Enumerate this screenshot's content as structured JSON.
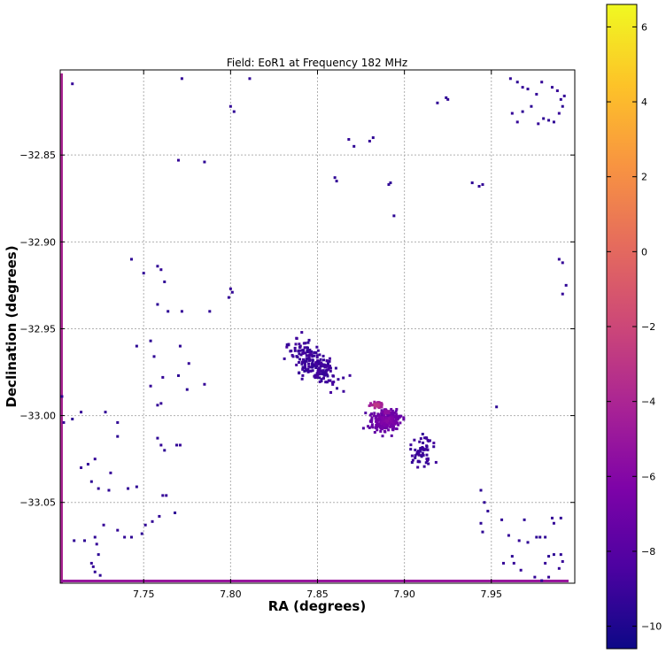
{
  "chart_data": {
    "type": "heatmap",
    "title": "Field: EoR1 at Frequency 182 MHz",
    "xlabel": "RA (degrees)",
    "ylabel": "Declination (degrees)",
    "xlim": [
      7.702,
      7.998
    ],
    "ylim": [
      -33.0965,
      -32.801
    ],
    "xticks": [
      7.75,
      7.8,
      7.85,
      7.9,
      7.95
    ],
    "xtick_labels": [
      "7.75",
      "7.80",
      "7.85",
      "7.90",
      "7.95"
    ],
    "yticks": [
      -32.85,
      -32.9,
      -32.95,
      -33.0,
      -33.05
    ],
    "ytick_labels": [
      "−32.85",
      "−32.90",
      "−32.95",
      "−33.00",
      "−33.05"
    ],
    "grid": true,
    "colormap": "plasma",
    "colorbar": {
      "vmin": -10.6,
      "vmax": 6.6,
      "ticks": [
        6,
        4,
        2,
        0,
        -2,
        -4,
        -6,
        -8,
        -10
      ],
      "tick_labels": [
        "6",
        "4",
        "2",
        "0",
        "−2",
        "−4",
        "−6",
        "−8",
        "−10"
      ]
    },
    "hotspots": [
      {
        "ra": 7.884,
        "dec": -32.994,
        "value": -3.0
      },
      {
        "ra": 7.89,
        "dec": -32.998,
        "value": -5.5
      }
    ],
    "clusters": [
      {
        "name": "main",
        "ra": 7.89,
        "dec": -33.003,
        "sra": 0.01,
        "sdec": 0.007,
        "n": 230
      },
      {
        "name": "arm",
        "ra": 7.848,
        "dec": -32.97,
        "sra": 0.017,
        "sdec": 0.011,
        "n": 210
      },
      {
        "name": "tail",
        "ra": 7.91,
        "dec": -33.02,
        "sra": 0.009,
        "sdec": 0.01,
        "n": 60
      }
    ],
    "scattered_points": [
      [
        7.709,
        -32.809
      ],
      [
        7.772,
        -32.806
      ],
      [
        7.811,
        -32.806
      ],
      [
        7.802,
        -32.825
      ],
      [
        7.8,
        -32.822
      ],
      [
        7.868,
        -32.841
      ],
      [
        7.871,
        -32.845
      ],
      [
        7.88,
        -32.842
      ],
      [
        7.882,
        -32.84
      ],
      [
        7.919,
        -32.82
      ],
      [
        7.924,
        -32.817
      ],
      [
        7.925,
        -32.818
      ],
      [
        7.77,
        -32.853
      ],
      [
        7.785,
        -32.854
      ],
      [
        7.86,
        -32.863
      ],
      [
        7.861,
        -32.865
      ],
      [
        7.891,
        -32.867
      ],
      [
        7.892,
        -32.866
      ],
      [
        7.894,
        -32.885
      ],
      [
        7.939,
        -32.866
      ],
      [
        7.943,
        -32.868
      ],
      [
        7.945,
        -32.867
      ],
      [
        7.961,
        -32.806
      ],
      [
        7.965,
        -32.808
      ],
      [
        7.968,
        -32.811
      ],
      [
        7.971,
        -32.812
      ],
      [
        7.976,
        -32.815
      ],
      [
        7.979,
        -32.808
      ],
      [
        7.985,
        -32.811
      ],
      [
        7.988,
        -32.813
      ],
      [
        7.99,
        -32.818
      ],
      [
        7.992,
        -32.816
      ],
      [
        7.962,
        -32.826
      ],
      [
        7.968,
        -32.825
      ],
      [
        7.973,
        -32.822
      ],
      [
        7.977,
        -32.832
      ],
      [
        7.983,
        -32.83
      ],
      [
        7.986,
        -32.831
      ],
      [
        7.989,
        -32.826
      ],
      [
        7.991,
        -32.822
      ],
      [
        7.965,
        -32.831
      ],
      [
        7.98,
        -32.829
      ],
      [
        7.743,
        -32.91
      ],
      [
        7.75,
        -32.918
      ],
      [
        7.758,
        -32.914
      ],
      [
        7.76,
        -32.916
      ],
      [
        7.762,
        -32.923
      ],
      [
        7.758,
        -32.936
      ],
      [
        7.764,
        -32.94
      ],
      [
        7.772,
        -32.94
      ],
      [
        7.788,
        -32.94
      ],
      [
        7.8,
        -32.927
      ],
      [
        7.801,
        -32.929
      ],
      [
        7.799,
        -32.932
      ],
      [
        7.989,
        -32.91
      ],
      [
        7.991,
        -32.912
      ],
      [
        7.993,
        -32.925
      ],
      [
        7.991,
        -32.93
      ],
      [
        7.746,
        -32.96
      ],
      [
        7.754,
        -32.957
      ],
      [
        7.756,
        -32.966
      ],
      [
        7.761,
        -32.978
      ],
      [
        7.77,
        -32.977
      ],
      [
        7.776,
        -32.97
      ],
      [
        7.771,
        -32.96
      ],
      [
        7.785,
        -32.982
      ],
      [
        7.754,
        -32.983
      ],
      [
        7.758,
        -32.994
      ],
      [
        7.76,
        -32.993
      ],
      [
        7.775,
        -32.985
      ],
      [
        7.703,
        -32.989
      ],
      [
        7.704,
        -33.004
      ],
      [
        7.709,
        -33.002
      ],
      [
        7.714,
        -32.998
      ],
      [
        7.728,
        -32.998
      ],
      [
        7.735,
        -33.004
      ],
      [
        7.735,
        -33.012
      ],
      [
        7.758,
        -33.013
      ],
      [
        7.76,
        -33.017
      ],
      [
        7.762,
        -33.02
      ],
      [
        7.769,
        -33.017
      ],
      [
        7.771,
        -33.017
      ],
      [
        7.714,
        -33.03
      ],
      [
        7.718,
        -33.028
      ],
      [
        7.722,
        -33.025
      ],
      [
        7.731,
        -33.033
      ],
      [
        7.72,
        -33.038
      ],
      [
        7.724,
        -33.042
      ],
      [
        7.73,
        -33.043
      ],
      [
        7.741,
        -33.042
      ],
      [
        7.746,
        -33.041
      ],
      [
        7.761,
        -33.046
      ],
      [
        7.763,
        -33.046
      ],
      [
        7.768,
        -33.056
      ],
      [
        7.71,
        -33.072
      ],
      [
        7.716,
        -33.072
      ],
      [
        7.722,
        -33.07
      ],
      [
        7.723,
        -33.074
      ],
      [
        7.727,
        -33.063
      ],
      [
        7.735,
        -33.066
      ],
      [
        7.739,
        -33.07
      ],
      [
        7.743,
        -33.07
      ],
      [
        7.749,
        -33.068
      ],
      [
        7.751,
        -33.063
      ],
      [
        7.755,
        -33.061
      ],
      [
        7.759,
        -33.058
      ],
      [
        7.72,
        -33.085
      ],
      [
        7.721,
        -33.087
      ],
      [
        7.722,
        -33.09
      ],
      [
        7.724,
        -33.08
      ],
      [
        7.725,
        -33.092
      ],
      [
        7.944,
        -33.043
      ],
      [
        7.946,
        -33.05
      ],
      [
        7.948,
        -33.055
      ],
      [
        7.944,
        -33.062
      ],
      [
        7.945,
        -33.067
      ],
      [
        7.956,
        -33.06
      ],
      [
        7.96,
        -33.069
      ],
      [
        7.962,
        -33.081
      ],
      [
        7.963,
        -33.085
      ],
      [
        7.957,
        -33.085
      ],
      [
        7.966,
        -33.072
      ],
      [
        7.967,
        -33.089
      ],
      [
        7.975,
        -33.093
      ],
      [
        7.971,
        -33.073
      ],
      [
        7.976,
        -33.07
      ],
      [
        7.969,
        -33.06
      ],
      [
        7.978,
        -33.07
      ],
      [
        7.981,
        -33.07
      ],
      [
        7.985,
        -33.059
      ],
      [
        7.99,
        -33.059
      ],
      [
        7.981,
        -33.085
      ],
      [
        7.983,
        -33.081
      ],
      [
        7.986,
        -33.08
      ],
      [
        7.99,
        -33.08
      ],
      [
        7.991,
        -33.084
      ],
      [
        7.989,
        -33.088
      ],
      [
        7.979,
        -33.095
      ],
      [
        7.983,
        -33.093
      ],
      [
        7.986,
        -33.062
      ],
      [
        7.953,
        -32.995
      ]
    ]
  }
}
